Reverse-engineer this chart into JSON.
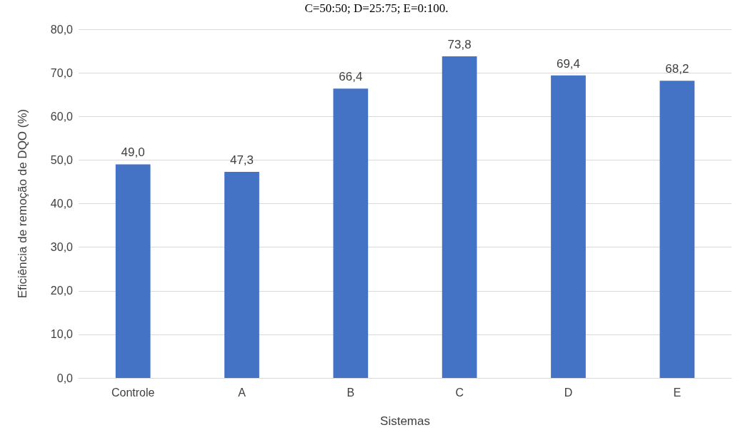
{
  "chart_data": {
    "type": "bar",
    "xlabel": "Sistemas",
    "ylabel": "Eficiência de remoção de DQO (%)",
    "annotations": [
      "C=50:50; D=25:75; E=0:100."
    ],
    "categories": [
      "Controle",
      "A",
      "B",
      "C",
      "D",
      "E"
    ],
    "values": [
      49.0,
      47.3,
      66.4,
      73.8,
      69.4,
      68.2
    ],
    "color": "#4472c4",
    "ylim": [
      0,
      80
    ],
    "yticks": [
      {
        "value": 0,
        "label": "0,0"
      },
      {
        "value": 10,
        "label": "10,0"
      },
      {
        "value": 20,
        "label": "20,0"
      },
      {
        "value": 30,
        "label": "30,0"
      },
      {
        "value": 40,
        "label": "40,0"
      },
      {
        "value": 50,
        "label": "50,0"
      },
      {
        "value": 60,
        "label": "60,0"
      },
      {
        "value": 70,
        "label": "70,0"
      },
      {
        "value": 80,
        "label": "80,0"
      }
    ],
    "value_labels": [
      "49,0",
      "47,3",
      "66,4",
      "73,8",
      "69,4",
      "68,2"
    ],
    "grid": true
  }
}
